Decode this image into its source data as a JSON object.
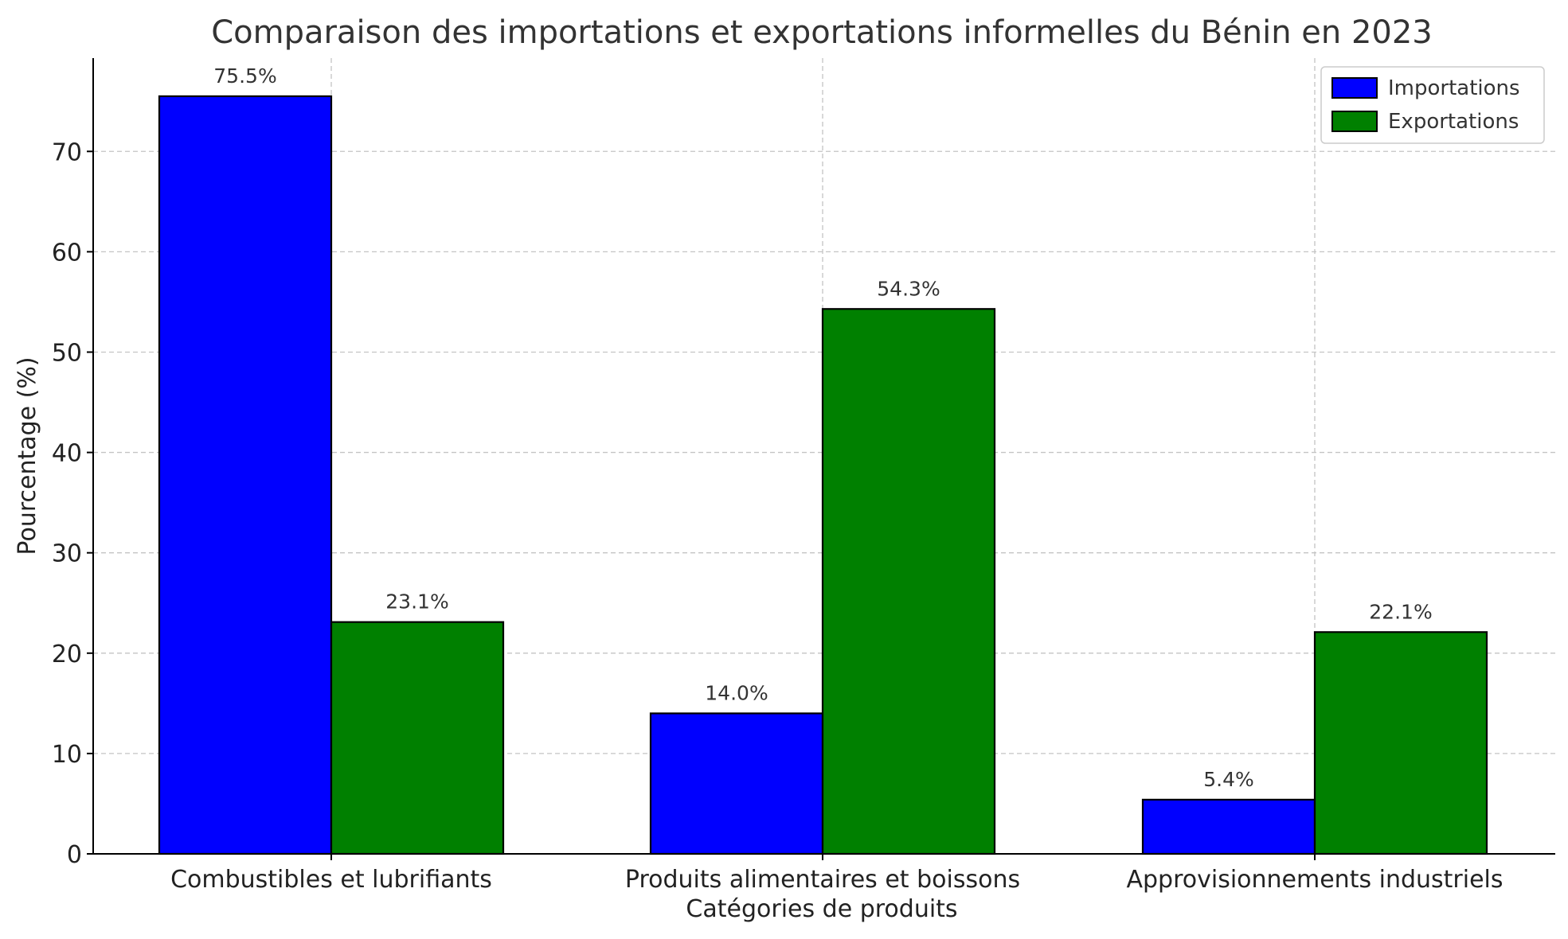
{
  "chart_data": {
    "type": "bar",
    "title": "Comparaison des importations et exportations informelles du Bénin en 2023",
    "xlabel": "Catégories de produits",
    "ylabel": "Pourcentage (%)",
    "categories": [
      "Combustibles et lubrifiants",
      "Produits alimentaires et boissons",
      "Approvisionnements industriels"
    ],
    "series": [
      {
        "name": "Importations",
        "color": "#0000ff",
        "values": [
          75.5,
          14.0,
          5.4
        ],
        "labels": [
          "75.5%",
          "14.0%",
          "5.4%"
        ]
      },
      {
        "name": "Exportations",
        "color": "#008000",
        "values": [
          23.1,
          54.3,
          22.1
        ],
        "labels": [
          "23.1%",
          "54.3%",
          "22.1%"
        ]
      }
    ],
    "ylim": [
      0,
      79.3
    ],
    "yticks": [
      0,
      10,
      20,
      30,
      40,
      50,
      60,
      70
    ],
    "grid": true,
    "legend_position": "top-right"
  }
}
